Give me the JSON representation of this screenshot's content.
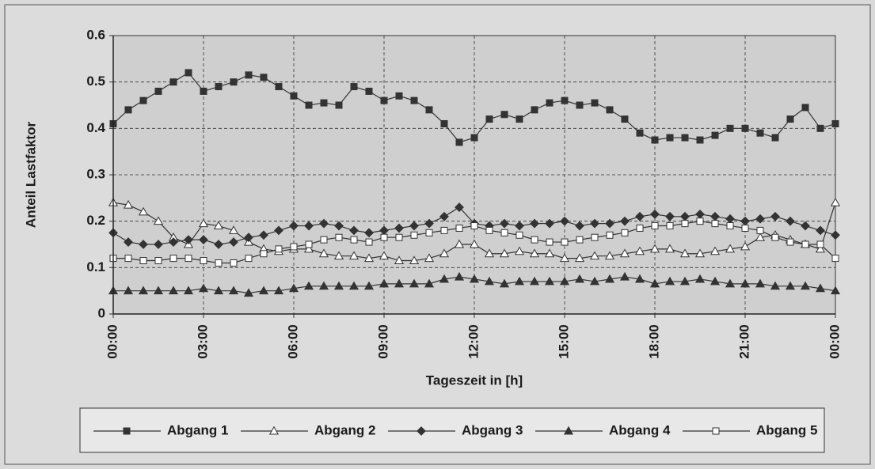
{
  "chart_data": {
    "type": "line",
    "ylabel": "Anteil Lastfaktor",
    "xlabel": "Tageszeit in [h]",
    "x": [
      0,
      0.5,
      1,
      1.5,
      2,
      2.5,
      3,
      3.5,
      4,
      4.5,
      5,
      5.5,
      6,
      6.5,
      7,
      7.5,
      8,
      8.5,
      9,
      9.5,
      10,
      10.5,
      11,
      11.5,
      12,
      12.5,
      13,
      13.5,
      14,
      14.5,
      15,
      15.5,
      16,
      16.5,
      17,
      17.5,
      18,
      18.5,
      19,
      19.5,
      20,
      20.5,
      21,
      21.5,
      22,
      22.5,
      23,
      23.5,
      24
    ],
    "xlim": [
      0,
      24
    ],
    "xticks": [
      {
        "value": 0,
        "label": "00:00"
      },
      {
        "value": 3,
        "label": "03:00"
      },
      {
        "value": 6,
        "label": "06:00"
      },
      {
        "value": 9,
        "label": "09:00"
      },
      {
        "value": 12,
        "label": "12:00"
      },
      {
        "value": 15,
        "label": "15:00"
      },
      {
        "value": 18,
        "label": "18:00"
      },
      {
        "value": 21,
        "label": "21:00"
      },
      {
        "value": 24,
        "label": "00:00"
      }
    ],
    "ylim": [
      0,
      0.6
    ],
    "yticks": [
      0,
      0.1,
      0.2,
      0.3,
      0.4,
      0.5,
      0.6
    ],
    "grid": true,
    "legend": "bottom",
    "series": [
      {
        "name": "Abgang 1",
        "color": "#333333",
        "marker": "square",
        "filled": true,
        "values": [
          0.41,
          0.44,
          0.46,
          0.48,
          0.5,
          0.52,
          0.48,
          0.49,
          0.5,
          0.515,
          0.51,
          0.49,
          0.47,
          0.45,
          0.455,
          0.45,
          0.49,
          0.48,
          0.46,
          0.47,
          0.46,
          0.44,
          0.41,
          0.37,
          0.38,
          0.42,
          0.43,
          0.42,
          0.44,
          0.455,
          0.46,
          0.45,
          0.455,
          0.44,
          0.42,
          0.39,
          0.375,
          0.38,
          0.38,
          0.375,
          0.385,
          0.4,
          0.4,
          0.39,
          0.38,
          0.42,
          0.445,
          0.4,
          0.41
        ]
      },
      {
        "name": "Abgang 2",
        "color": "#333333",
        "marker": "triangle",
        "filled": false,
        "values": [
          0.24,
          0.235,
          0.22,
          0.2,
          0.165,
          0.15,
          0.195,
          0.19,
          0.18,
          0.155,
          0.14,
          0.135,
          0.14,
          0.14,
          0.13,
          0.125,
          0.125,
          0.12,
          0.125,
          0.115,
          0.115,
          0.12,
          0.13,
          0.15,
          0.15,
          0.13,
          0.13,
          0.135,
          0.13,
          0.13,
          0.12,
          0.12,
          0.125,
          0.125,
          0.13,
          0.135,
          0.14,
          0.14,
          0.13,
          0.13,
          0.135,
          0.14,
          0.145,
          0.165,
          0.17,
          0.16,
          0.15,
          0.14,
          0.24
        ]
      },
      {
        "name": "Abgang 3",
        "color": "#333333",
        "marker": "diamond",
        "filled": true,
        "values": [
          0.175,
          0.155,
          0.15,
          0.15,
          0.155,
          0.16,
          0.16,
          0.15,
          0.155,
          0.165,
          0.17,
          0.18,
          0.19,
          0.19,
          0.195,
          0.19,
          0.18,
          0.175,
          0.18,
          0.185,
          0.19,
          0.195,
          0.21,
          0.23,
          0.195,
          0.19,
          0.195,
          0.19,
          0.195,
          0.195,
          0.2,
          0.19,
          0.195,
          0.195,
          0.2,
          0.21,
          0.215,
          0.21,
          0.21,
          0.215,
          0.21,
          0.205,
          0.2,
          0.205,
          0.21,
          0.2,
          0.19,
          0.18,
          0.17
        ]
      },
      {
        "name": "Abgang 4",
        "color": "#333333",
        "marker": "triangle",
        "filled": true,
        "values": [
          0.05,
          0.05,
          0.05,
          0.05,
          0.05,
          0.05,
          0.055,
          0.05,
          0.05,
          0.045,
          0.05,
          0.05,
          0.055,
          0.06,
          0.06,
          0.06,
          0.06,
          0.06,
          0.065,
          0.065,
          0.065,
          0.065,
          0.075,
          0.08,
          0.075,
          0.07,
          0.065,
          0.07,
          0.07,
          0.07,
          0.07,
          0.075,
          0.07,
          0.075,
          0.08,
          0.075,
          0.065,
          0.07,
          0.07,
          0.075,
          0.07,
          0.065,
          0.065,
          0.065,
          0.06,
          0.06,
          0.06,
          0.055,
          0.05
        ]
      },
      {
        "name": "Abgang 5",
        "color": "#333333",
        "marker": "square",
        "filled": false,
        "values": [
          0.12,
          0.12,
          0.115,
          0.115,
          0.12,
          0.12,
          0.115,
          0.11,
          0.11,
          0.12,
          0.13,
          0.14,
          0.145,
          0.15,
          0.16,
          0.165,
          0.16,
          0.155,
          0.165,
          0.165,
          0.17,
          0.175,
          0.18,
          0.185,
          0.19,
          0.18,
          0.175,
          0.17,
          0.16,
          0.155,
          0.155,
          0.16,
          0.165,
          0.17,
          0.175,
          0.185,
          0.19,
          0.19,
          0.195,
          0.2,
          0.195,
          0.19,
          0.185,
          0.18,
          0.165,
          0.155,
          0.15,
          0.15,
          0.12
        ]
      }
    ]
  }
}
